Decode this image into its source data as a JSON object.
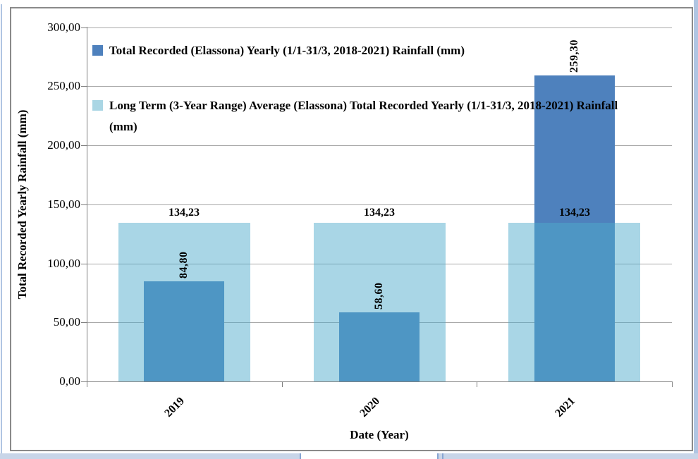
{
  "app": {
    "type": "spreadsheet-embedded-chart"
  },
  "chart_data": {
    "type": "bar",
    "title": "",
    "categories": [
      "2019",
      "2020",
      "2021"
    ],
    "series": [
      {
        "name": "Total Recorded (Elassona) Yearly (1/1-31/3, 2018-2021) Rainfall (mm)",
        "values": [
          84.8,
          58.6,
          259.3
        ],
        "data_labels": [
          "84,80",
          "58,60",
          "259,30"
        ],
        "color": "#4E81BD",
        "label_orientation": "vertical"
      },
      {
        "name": "Long Term (3-Year Range) Average (Elassona) Total Recorded Yearly (1/1-31/3, 2018-2021) Rainfall (mm)",
        "values": [
          134.23,
          134.23,
          134.23
        ],
        "data_labels": [
          "134,23",
          "134,23",
          "134,23"
        ],
        "color": "rgba(80,172,203,0.49)",
        "legend_color": "#AAD6E4",
        "label_orientation": "horizontal"
      }
    ],
    "xlabel": "Date (Year)",
    "ylabel": "Total Recorded Yearly Rainfall (mm)",
    "ylim": [
      0,
      300
    ],
    "ytick_interval": 50,
    "ytick_labels": [
      "0,00",
      "50,00",
      "100,00",
      "150,00",
      "200,00",
      "250,00",
      "300,00"
    ],
    "grid": true,
    "legend_position": "inside-top-left",
    "decimal_separator": ","
  },
  "legend": {
    "entries": [
      {
        "lines": [
          "Total Recorded (Elassona) Yearly (1/1-31/3, 2018-2021) Rainfall (mm)"
        ]
      },
      {
        "lines": [
          "Long Term (3-Year Range) Average (Elassona) Total Recorded Yearly (1/1-31/3, 2018-2021) Rainfall",
          "(mm)"
        ]
      }
    ]
  },
  "colors": {
    "series_dark": "#4E81BD",
    "series_light_over_white": "#AAD6E4",
    "series_overlap_blend": "#4F96C4",
    "gridline": "#A8A8A8",
    "axis_line": "#7F7F7F",
    "chart_border": "#8A8A8A",
    "worksheet_fill": "#C8D5E8",
    "worksheet_grid": "#87A5D2",
    "text": "#000000"
  }
}
